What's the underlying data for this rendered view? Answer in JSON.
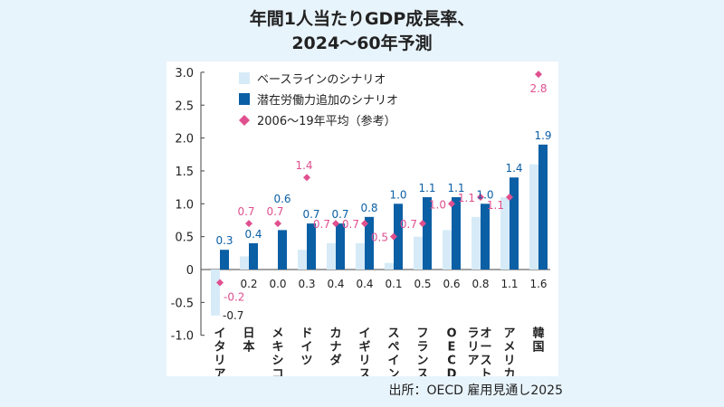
{
  "title_line1": "年間1人当たりGDP成長率、",
  "title_line2": "2024～60年予測",
  "source": "出所：OECD 雇用見通し2025",
  "colors": {
    "baseline": "#d6ebf7",
    "labor": "#0b5fa5",
    "average": "#e0508f",
    "background": "#e8f4fc"
  },
  "chart_data": {
    "type": "bar",
    "categories": [
      "イタリア",
      "日本",
      "メキシコ",
      "ドイツ",
      "カナダ",
      "イギリス",
      "スペイン",
      "フランス",
      "OECD",
      "オーストラリア",
      "アメリカ",
      "韓国"
    ],
    "series": [
      {
        "name": "ベースラインのシナリオ",
        "type": "bar",
        "values": [
          -0.7,
          0.2,
          0.0,
          0.3,
          0.4,
          0.4,
          0.1,
          0.5,
          0.6,
          0.8,
          1.1,
          1.6
        ]
      },
      {
        "name": "潜在労働力追加のシナリオ",
        "type": "bar",
        "values": [
          0.3,
          0.4,
          0.6,
          0.7,
          0.7,
          0.8,
          1.0,
          1.1,
          1.1,
          1.0,
          1.4,
          1.9
        ]
      },
      {
        "name": "2006～19年平均（参考）",
        "type": "scatter",
        "marker": "diamond",
        "values": [
          -0.2,
          0.7,
          0.7,
          1.4,
          0.7,
          0.7,
          0.5,
          0.7,
          1.0,
          1.1,
          1.1,
          2.8
        ]
      }
    ],
    "yticks": [
      "3.0",
      "2.5",
      "2.0",
      "1.5",
      "1.0",
      "0.5",
      "0",
      "-0.5",
      "-1.0"
    ],
    "ylim": [
      -1.0,
      3.0
    ],
    "legend": "top-left",
    "grid": false
  }
}
